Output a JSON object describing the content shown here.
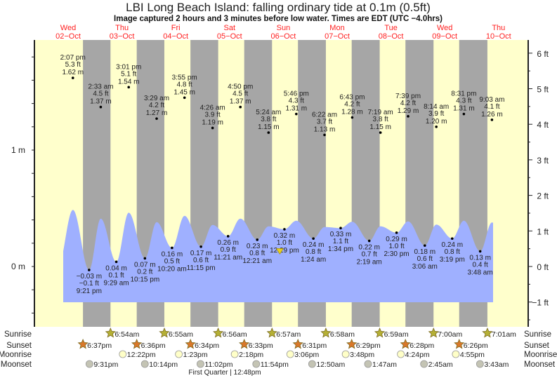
{
  "chart_data": {
    "type": "area",
    "title": "LBI Long Beach Island: falling  ordinary tide at 0.1m (0.5ft)",
    "subtitle": "Image captured 2 hours and 3 minutes before low water. Times are EDT (UTC −4.0hrs)",
    "days": [
      {
        "dow": "Wed",
        "date": "02−Oct"
      },
      {
        "dow": "Thu",
        "date": "03−Oct"
      },
      {
        "dow": "Fri",
        "date": "04−Oct"
      },
      {
        "dow": "Sat",
        "date": "05−Oct"
      },
      {
        "dow": "Sun",
        "date": "06−Oct"
      },
      {
        "dow": "Mon",
        "date": "07−Oct"
      },
      {
        "dow": "Tue",
        "date": "08−Oct"
      },
      {
        "dow": "Wed",
        "date": "09−Oct"
      },
      {
        "dow": "Thu",
        "date": "10−Oct"
      }
    ],
    "left_axis": {
      "unit": "m",
      "labels": [
        {
          "v": 0,
          "t": "0 m"
        },
        {
          "v": 1,
          "t": "1 m"
        }
      ],
      "ylim": [
        -0.52,
        1.95
      ]
    },
    "right_axis": {
      "unit": "ft",
      "labels": [
        {
          "v": 6,
          "t": "6 ft"
        },
        {
          "v": 5,
          "t": "5 ft"
        },
        {
          "v": 4,
          "t": "4 ft"
        },
        {
          "v": 3,
          "t": "3 ft"
        },
        {
          "v": 2,
          "t": "2 ft"
        },
        {
          "v": 1,
          "t": "1 ft"
        },
        {
          "v": 0,
          "t": "0 ft"
        },
        {
          "v": -1,
          "t": "−1 ft"
        }
      ]
    },
    "extremes": [
      {
        "d": 0,
        "time": "2:07 pm",
        "ft": "5.3 ft",
        "m": "1.62 m",
        "type": "high",
        "v": 1.62
      },
      {
        "d": 0,
        "time": "9:21 pm",
        "ft": "−0.1 ft",
        "m": "−0.03 m",
        "type": "low",
        "v": -0.03
      },
      {
        "d": 1,
        "time": "2:33 am",
        "ft": "4.5 ft",
        "m": "1.37 m",
        "type": "high",
        "v": 1.37
      },
      {
        "d": 1,
        "time": "9:29 am",
        "ft": "0.1 ft",
        "m": "0.04 m",
        "type": "low",
        "v": 0.04
      },
      {
        "d": 1,
        "time": "3:01 pm",
        "ft": "5.1 ft",
        "m": "1.54 m",
        "type": "high",
        "v": 1.54
      },
      {
        "d": 1,
        "time": "10:15 pm",
        "ft": "0.2 ft",
        "m": "0.07 m",
        "type": "low",
        "v": 0.07
      },
      {
        "d": 2,
        "time": "3:29 am",
        "ft": "4.2 ft",
        "m": "1.27 m",
        "type": "high",
        "v": 1.27
      },
      {
        "d": 2,
        "time": "10:20 am",
        "ft": "0.5 ft",
        "m": "0.16 m",
        "type": "low",
        "v": 0.16
      },
      {
        "d": 2,
        "time": "3:55 pm",
        "ft": "4.8 ft",
        "m": "1.45 m",
        "type": "high",
        "v": 1.45
      },
      {
        "d": 2,
        "time": "11:15 pm",
        "ft": "0.6 ft",
        "m": "0.17 m",
        "type": "low",
        "v": 0.17
      },
      {
        "d": 3,
        "time": "4:26 am",
        "ft": "3.9 ft",
        "m": "1.19 m",
        "type": "high",
        "v": 1.19
      },
      {
        "d": 3,
        "time": "11:21 am",
        "ft": "0.9 ft",
        "m": "0.26 m",
        "type": "low",
        "v": 0.26
      },
      {
        "d": 3,
        "time": "4:50 pm",
        "ft": "4.5 ft",
        "m": "1.37 m",
        "type": "high",
        "v": 1.37
      },
      {
        "d": 4,
        "time": "12:21 am",
        "ft": "0.8 ft",
        "m": "0.23 m",
        "type": "low",
        "v": 0.23
      },
      {
        "d": 4,
        "time": "5:24 am",
        "ft": "3.8 ft",
        "m": "1.15 m",
        "type": "high",
        "v": 1.15
      },
      {
        "d": 4,
        "time": "12:29 pm",
        "ft": "1.0 ft",
        "m": "0.32 m",
        "type": "low",
        "v": 0.32
      },
      {
        "d": 4,
        "time": "5:46 pm",
        "ft": "4.3 ft",
        "m": "1.31 m",
        "type": "high",
        "v": 1.31
      },
      {
        "d": 5,
        "time": "1:24 am",
        "ft": "0.8 ft",
        "m": "0.24 m",
        "type": "low",
        "v": 0.24
      },
      {
        "d": 5,
        "time": "6:22 am",
        "ft": "3.7 ft",
        "m": "1.13 m",
        "type": "high",
        "v": 1.13
      },
      {
        "d": 5,
        "time": "1:34 pm",
        "ft": "1.1 ft",
        "m": "0.33 m",
        "type": "low",
        "v": 0.33
      },
      {
        "d": 5,
        "time": "6:43 pm",
        "ft": "4.2 ft",
        "m": "1.28 m",
        "type": "high",
        "v": 1.28
      },
      {
        "d": 6,
        "time": "2:19 am",
        "ft": "0.7 ft",
        "m": "0.22 m",
        "type": "low",
        "v": 0.22
      },
      {
        "d": 6,
        "time": "7:19 am",
        "ft": "3.8 ft",
        "m": "1.15 m",
        "type": "high",
        "v": 1.15
      },
      {
        "d": 6,
        "time": "2:30 pm",
        "ft": "1.0 ft",
        "m": "0.29 m",
        "type": "low",
        "v": 0.29
      },
      {
        "d": 6,
        "time": "7:39 pm",
        "ft": "4.2 ft",
        "m": "1.29 m",
        "type": "high",
        "v": 1.29
      },
      {
        "d": 7,
        "time": "3:06 am",
        "ft": "0.6 ft",
        "m": "0.18 m",
        "type": "low",
        "v": 0.18
      },
      {
        "d": 7,
        "time": "8:14 am",
        "ft": "3.9 ft",
        "m": "1.20 m",
        "type": "high",
        "v": 1.2
      },
      {
        "d": 7,
        "time": "3:19 pm",
        "ft": "0.8 ft",
        "m": "0.24 m",
        "type": "low",
        "v": 0.24
      },
      {
        "d": 7,
        "time": "8:31 pm",
        "ft": "4.3 ft",
        "m": "1.31 m",
        "type": "high",
        "v": 1.31
      },
      {
        "d": 8,
        "time": "3:48 am",
        "ft": "0.4 ft",
        "m": "0.13 m",
        "type": "low",
        "v": 0.13
      },
      {
        "d": 8,
        "time": "9:03 am",
        "ft": "4.1 ft",
        "m": "1.26 m",
        "type": "high",
        "v": 1.26
      }
    ],
    "current_marker": {
      "d": 4,
      "time": "10:26 am",
      "value_m": 0.1
    },
    "rows": [
      {
        "label": "Sunrise",
        "kind": "sunrise",
        "color": "#b5b035",
        "items": [
          {
            "d": 1,
            "t": "6:54am"
          },
          {
            "d": 2,
            "t": "6:55am"
          },
          {
            "d": 3,
            "t": "6:56am"
          },
          {
            "d": 4,
            "t": "6:57am"
          },
          {
            "d": 5,
            "t": "6:58am"
          },
          {
            "d": 6,
            "t": "6:59am"
          },
          {
            "d": 7,
            "t": "7:00am"
          },
          {
            "d": 8,
            "t": "7:01am"
          }
        ]
      },
      {
        "label": "Sunset",
        "kind": "sunset",
        "color": "#d9782a",
        "items": [
          {
            "d": 0,
            "t": "6:37pm"
          },
          {
            "d": 1,
            "t": "6:36pm"
          },
          {
            "d": 2,
            "t": "6:34pm"
          },
          {
            "d": 3,
            "t": "6:33pm"
          },
          {
            "d": 4,
            "t": "6:31pm"
          },
          {
            "d": 5,
            "t": "6:29pm"
          },
          {
            "d": 6,
            "t": "6:28pm"
          },
          {
            "d": 7,
            "t": "6:26pm"
          }
        ]
      },
      {
        "label": "Moonrise",
        "kind": "moonrise",
        "color": "#ffffc8",
        "items": [
          {
            "d": 1,
            "t": "12:22pm"
          },
          {
            "d": 2,
            "t": "1:23pm"
          },
          {
            "d": 3,
            "t": "2:18pm"
          },
          {
            "d": 4,
            "t": "3:06pm"
          },
          {
            "d": 5,
            "t": "3:48pm"
          },
          {
            "d": 6,
            "t": "4:24pm"
          },
          {
            "d": 7,
            "t": "4:55pm"
          }
        ]
      },
      {
        "label": "Moonset",
        "kind": "moonset",
        "color": "#c4c4b4",
        "items": [
          {
            "d": 0,
            "t": "9:31pm"
          },
          {
            "d": 1,
            "t": "10:14pm"
          },
          {
            "d": 2,
            "t": "11:02pm"
          },
          {
            "d": 3,
            "t": "11:54pm"
          },
          {
            "d": 5,
            "t": "12:50am"
          },
          {
            "d": 6,
            "t": "1:47am"
          },
          {
            "d": 7,
            "t": "2:45am"
          },
          {
            "d": 8,
            "t": "3:43am"
          }
        ]
      }
    ],
    "moon_phase": "First Quarter | 12:48pm",
    "colors": {
      "day": "#ffffcc",
      "night": "#a6a6a6",
      "tide": "#9fb0ff",
      "date": "#ff2020",
      "marker": "#e8d020"
    }
  }
}
